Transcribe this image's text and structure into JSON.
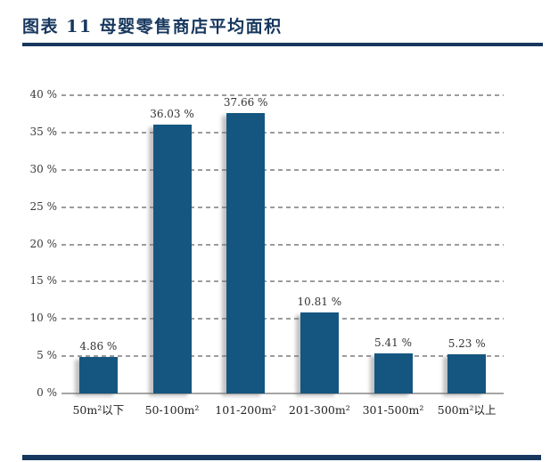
{
  "header": {
    "title": "图表 11  母婴零售商店平均面积"
  },
  "chart_data": {
    "type": "bar",
    "title": "母婴零售商店平均面积",
    "categories": [
      "50m²以下",
      "50-100m²",
      "101-200m²",
      "201-300m²",
      "301-500m²",
      "500m²以上"
    ],
    "values": [
      4.86,
      36.03,
      37.66,
      10.81,
      5.41,
      5.23
    ],
    "bar_labels": [
      "4.86 %",
      "36.03 %",
      "37.66 %",
      "10.81 %",
      "5.41 %",
      "5.23 %"
    ],
    "xlabel": "",
    "ylabel": "",
    "ylim": [
      0,
      40
    ],
    "y_ticks": [
      {
        "value": 0,
        "label": "0 %"
      },
      {
        "value": 5,
        "label": "5 %"
      },
      {
        "value": 10,
        "label": "10 %"
      },
      {
        "value": 15,
        "label": "15 %"
      },
      {
        "value": 20,
        "label": "20 %"
      },
      {
        "value": 25,
        "label": "25 %"
      },
      {
        "value": 30,
        "label": "30 %"
      },
      {
        "value": 35,
        "label": "35 %"
      },
      {
        "value": 40,
        "label": "40 %"
      }
    ],
    "grid": "horizontal dashed, solid baseline at 0%",
    "legend": "none"
  },
  "colors": {
    "accent_navy": "#17375E",
    "bar_fill": "#155680",
    "gridline": "#9c9c9c",
    "axis_line": "#a6a6a6",
    "tick_text": "#3a3a3a",
    "label_text": "#333333",
    "background": "#ffffff"
  }
}
